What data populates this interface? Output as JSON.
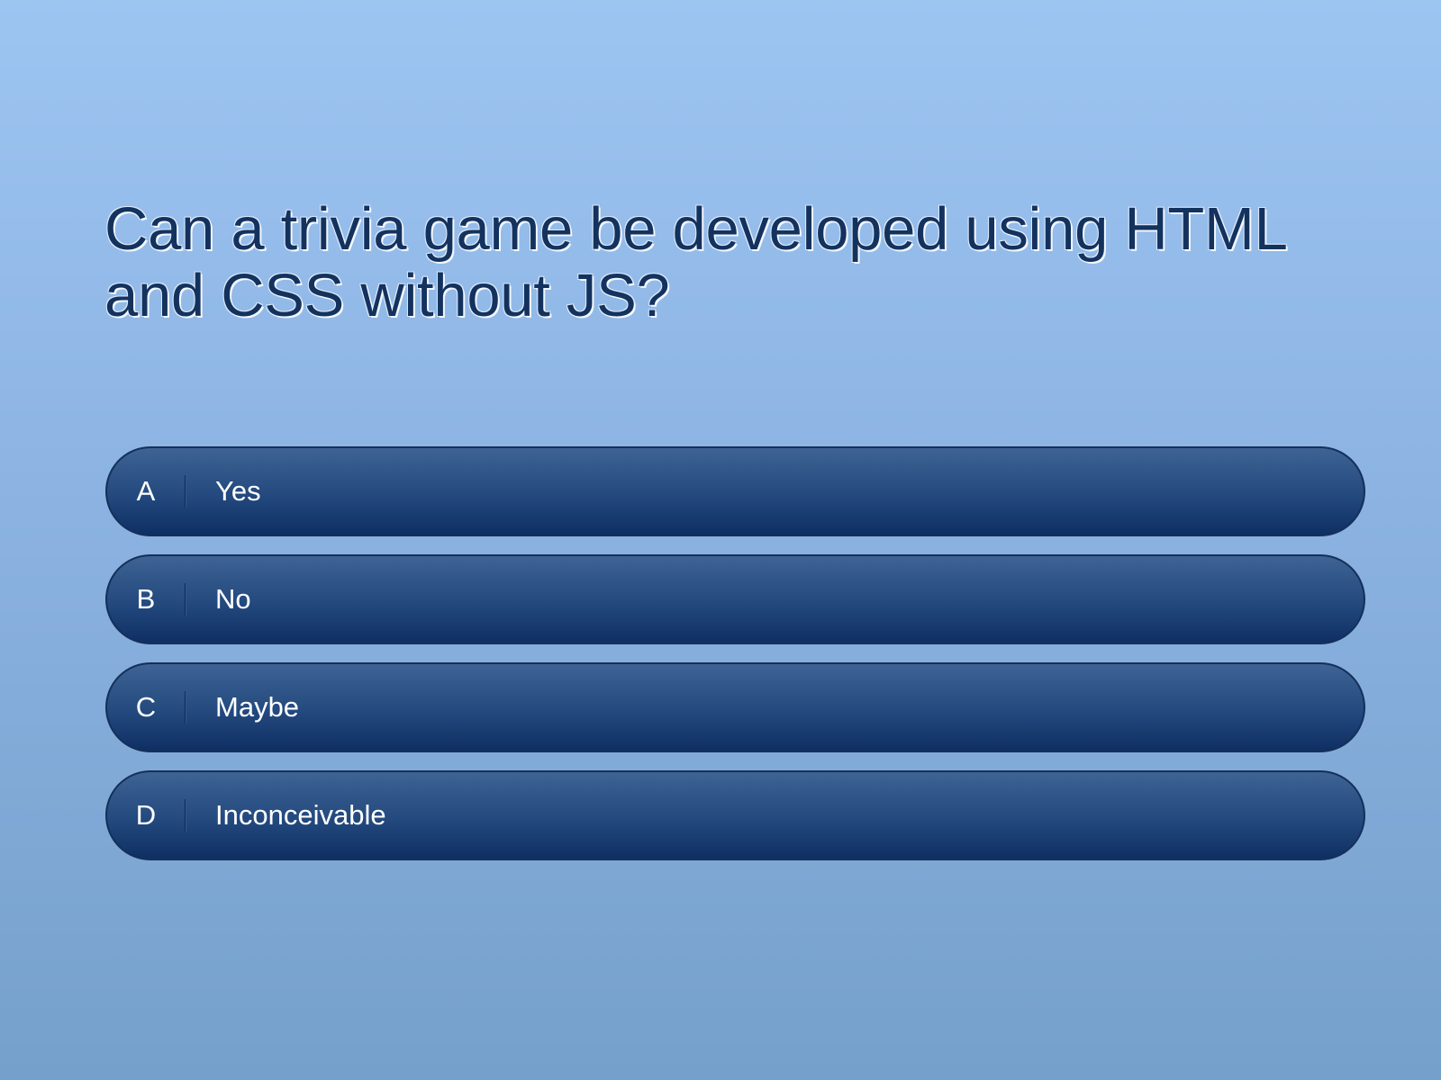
{
  "question": "Can a trivia game be developed using HTML and CSS without JS?",
  "answers": [
    {
      "letter": "A",
      "text": "Yes"
    },
    {
      "letter": "B",
      "text": "No"
    },
    {
      "letter": "C",
      "text": "Maybe"
    },
    {
      "letter": "D",
      "text": "Inconceivable"
    }
  ],
  "colors": {
    "question_text": "#14325e",
    "answer_bg_top": "#3e6394",
    "answer_bg_bottom": "#0f2f63",
    "answer_text": "#ffffff",
    "background_top": "#9dc5f2",
    "background_bottom": "#76a0cc"
  }
}
